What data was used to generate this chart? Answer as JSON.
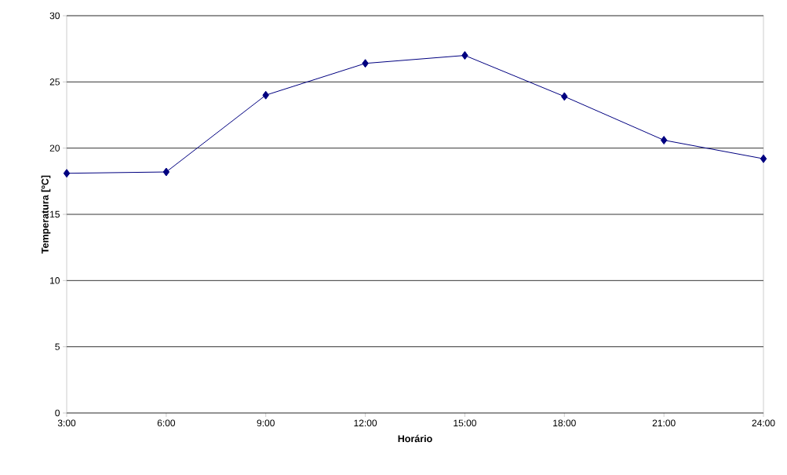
{
  "chart_data": {
    "type": "line",
    "xlabel": "Horário",
    "ylabel": "Temperatura [ºC]",
    "categories": [
      "3:00",
      "6:00",
      "9:00",
      "12:00",
      "15:00",
      "18:00",
      "21:00",
      "24:00"
    ],
    "series": [
      {
        "color": "#000080",
        "values": [
          18.1,
          18.2,
          24.0,
          26.4,
          27.0,
          23.9,
          20.6,
          19.2
        ]
      }
    ],
    "ylim": [
      0,
      30
    ],
    "yticks": [
      0,
      5,
      10,
      15,
      20,
      25,
      30
    ],
    "grid": "y",
    "marker": "diamond",
    "line_style": "solid"
  }
}
